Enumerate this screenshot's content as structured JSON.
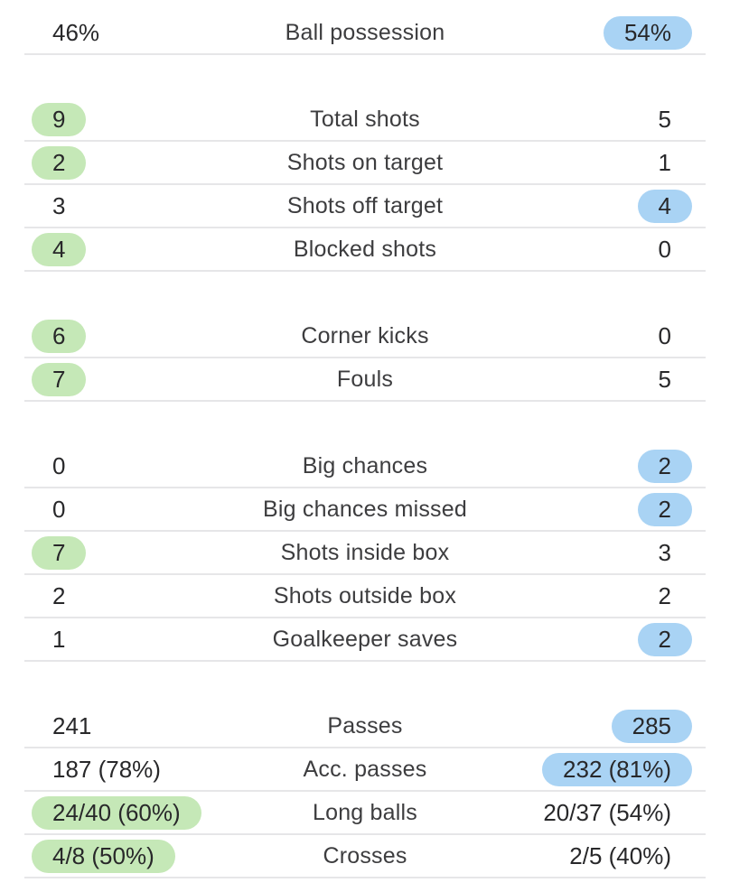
{
  "theme": {
    "home_highlight_color": "#c5e8b7",
    "away_highlight_color": "#a9d3f4",
    "divider_color": "#e6e6e8",
    "label_color": "#3d3d3f",
    "value_color": "#28282a",
    "background_color": "#ffffff"
  },
  "stats_groups": [
    {
      "rows": [
        {
          "stat": "Ball possession",
          "home": "46%",
          "away": "54%",
          "highlight": "away"
        }
      ]
    },
    {
      "rows": [
        {
          "stat": "Total shots",
          "home": "9",
          "away": "5",
          "highlight": "home"
        },
        {
          "stat": "Shots on target",
          "home": "2",
          "away": "1",
          "highlight": "home"
        },
        {
          "stat": "Shots off target",
          "home": "3",
          "away": "4",
          "highlight": "away"
        },
        {
          "stat": "Blocked shots",
          "home": "4",
          "away": "0",
          "highlight": "home"
        }
      ]
    },
    {
      "rows": [
        {
          "stat": "Corner kicks",
          "home": "6",
          "away": "0",
          "highlight": "home"
        },
        {
          "stat": "Fouls",
          "home": "7",
          "away": "5",
          "highlight": "home"
        }
      ]
    },
    {
      "rows": [
        {
          "stat": "Big chances",
          "home": "0",
          "away": "2",
          "highlight": "away"
        },
        {
          "stat": "Big chances missed",
          "home": "0",
          "away": "2",
          "highlight": "away"
        },
        {
          "stat": "Shots inside box",
          "home": "7",
          "away": "3",
          "highlight": "home"
        },
        {
          "stat": "Shots outside box",
          "home": "2",
          "away": "2",
          "highlight": "none"
        },
        {
          "stat": "Goalkeeper saves",
          "home": "1",
          "away": "2",
          "highlight": "away"
        }
      ]
    },
    {
      "rows": [
        {
          "stat": "Passes",
          "home": "241",
          "away": "285",
          "highlight": "away"
        },
        {
          "stat": "Acc. passes",
          "home": "187 (78%)",
          "away": "232 (81%)",
          "highlight": "away"
        },
        {
          "stat": "Long balls",
          "home": "24/40 (60%)",
          "away": "20/37 (54%)",
          "highlight": "home"
        },
        {
          "stat": "Crosses",
          "home": "4/8 (50%)",
          "away": "2/5 (40%)",
          "highlight": "home"
        }
      ]
    }
  ]
}
